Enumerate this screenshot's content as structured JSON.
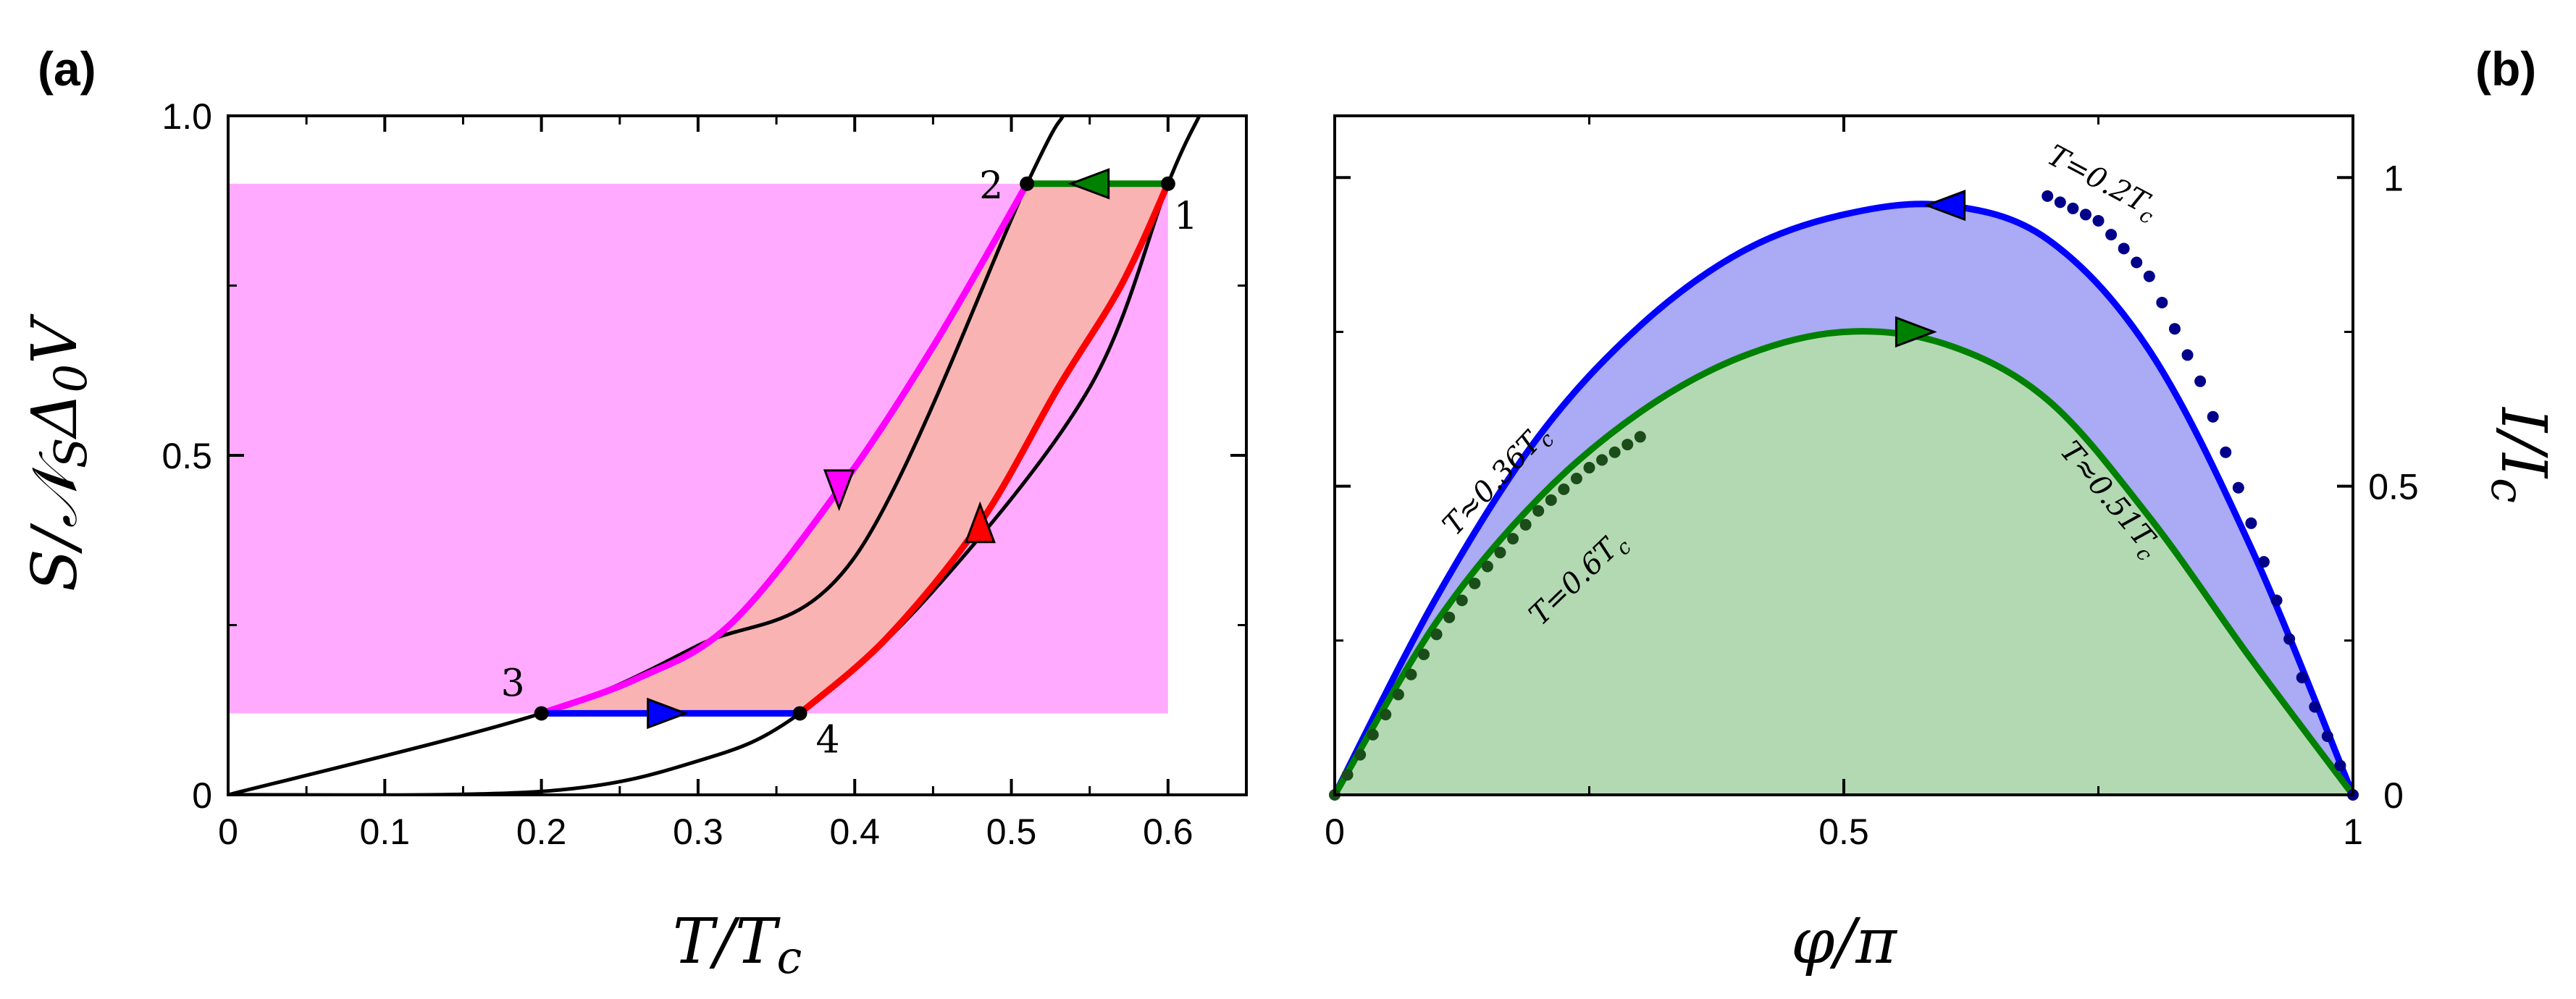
{
  "chart_data": [
    {
      "panel": "(a)",
      "type": "line",
      "xlabel": "T/T_c",
      "ylabel": "S/ɴ_SΔ_0V",
      "xlim": [
        0,
        0.65
      ],
      "ylim": [
        0,
        1.0
      ],
      "xticks": [
        "0",
        "0.1",
        "0.2",
        "0.3",
        "0.4",
        "0.5",
        "0.6"
      ],
      "yticks": [
        "0",
        "0.5",
        "1.0"
      ],
      "regions": [
        {
          "name": "magenta-region",
          "color": "#ffaaff",
          "y_range": [
            0.12,
            0.9
          ]
        },
        {
          "name": "red-region",
          "color": "#f9b3b3",
          "bounded_by": [
            "magenta-curve",
            "red-curve",
            "blue-segment",
            "green-segment"
          ]
        }
      ],
      "series": [
        {
          "color": "#000000",
          "points": [
            [
              0,
              0
            ],
            [
              0.2,
              0.12
            ],
            [
              0.3,
              0.22
            ],
            [
              0.4,
              0.35
            ],
            [
              0.51,
              0.9
            ],
            [
              0.533,
              1.0
            ]
          ]
        },
        {
          "color": "#000000",
          "points": [
            [
              0,
              0
            ],
            [
              0.2,
              0.005
            ],
            [
              0.3,
              0.05
            ],
            [
              0.365,
              0.12
            ],
            [
              0.45,
              0.3
            ],
            [
              0.55,
              0.6
            ],
            [
              0.6,
              0.9
            ],
            [
              0.62,
              1.0
            ]
          ]
        },
        {
          "color": "#ff00ff",
          "points": [
            [
              0.2,
              0.12
            ],
            [
              0.26,
              0.17
            ],
            [
              0.32,
              0.25
            ],
            [
              0.39,
              0.45
            ],
            [
              0.45,
              0.66
            ],
            [
              0.51,
              0.9
            ]
          ]
        },
        {
          "color": "#ff0000",
          "points": [
            [
              0.365,
              0.12
            ],
            [
              0.42,
              0.23
            ],
            [
              0.48,
              0.4
            ],
            [
              0.53,
              0.6
            ],
            [
              0.57,
              0.75
            ],
            [
              0.6,
              0.9
            ]
          ]
        },
        {
          "color": "#0000ff",
          "points": [
            [
              0.2,
              0.12
            ],
            [
              0.365,
              0.12
            ]
          ]
        },
        {
          "color": "#008000",
          "points": [
            [
              0.51,
              0.9
            ],
            [
              0.6,
              0.9
            ]
          ]
        }
      ],
      "markers": [
        {
          "label": "1",
          "x": 0.6,
          "y": 0.9
        },
        {
          "label": "2",
          "x": 0.51,
          "y": 0.9
        },
        {
          "label": "3",
          "x": 0.2,
          "y": 0.12
        },
        {
          "label": "4",
          "x": 0.365,
          "y": 0.12
        }
      ],
      "arrows": [
        {
          "color": "#008000",
          "x": 0.55,
          "y": 0.9,
          "direction": "left"
        },
        {
          "color": "#ff00ff",
          "x": 0.39,
          "y": 0.45,
          "direction": "down"
        },
        {
          "color": "#0000ff",
          "x": 0.28,
          "y": 0.12,
          "direction": "right"
        },
        {
          "color": "#ff0000",
          "x": 0.48,
          "y": 0.4,
          "direction": "up"
        }
      ]
    },
    {
      "panel": "(b)",
      "type": "line",
      "xlabel": "φ/π",
      "ylabel": "I/I_c",
      "xlim": [
        0,
        1
      ],
      "ylim": [
        0,
        1.1
      ],
      "xticks": [
        "0",
        "0.5",
        "1"
      ],
      "yticks": [
        "0",
        "0.5",
        "1"
      ],
      "series": [
        {
          "label": "T≈0.36T_c",
          "color": "#0000ff",
          "style": "solid",
          "fill": "#aaaaf5",
          "x": [
            0,
            0.1,
            0.2,
            0.3,
            0.4,
            0.5,
            0.6,
            0.7,
            0.8,
            0.9,
            1.0
          ],
          "y": [
            0,
            0.32,
            0.58,
            0.76,
            0.88,
            0.94,
            0.955,
            0.9,
            0.72,
            0.4,
            0
          ]
        },
        {
          "label": "T≈0.51T_c",
          "color": "#008000",
          "style": "solid",
          "fill": "#b3d9b3",
          "x": [
            0,
            0.1,
            0.2,
            0.3,
            0.4,
            0.5,
            0.6,
            0.7,
            0.8,
            0.9,
            1.0
          ],
          "y": [
            0,
            0.28,
            0.48,
            0.62,
            0.71,
            0.75,
            0.73,
            0.64,
            0.45,
            0.22,
            0
          ]
        },
        {
          "label": "T=0.2T_c",
          "color": "#00008b",
          "style": "dotted",
          "x": [
            0.7,
            0.75,
            0.8,
            0.85,
            0.9,
            0.95,
            1.0
          ],
          "y": [
            0.97,
            0.93,
            0.84,
            0.67,
            0.44,
            0.19,
            0
          ]
        },
        {
          "label": "T=0.6T_c",
          "color": "#1a4d1a",
          "style": "dotted",
          "x": [
            0,
            0.05,
            0.1,
            0.15,
            0.2,
            0.25,
            0.3
          ],
          "y": [
            0,
            0.13,
            0.26,
            0.37,
            0.46,
            0.53,
            0.58
          ]
        }
      ],
      "arrows": [
        {
          "color": "#0000ff",
          "x": 0.6,
          "y": 0.955,
          "direction": "left"
        },
        {
          "color": "#008000",
          "x": 0.57,
          "y": 0.75,
          "direction": "right"
        }
      ]
    }
  ]
}
